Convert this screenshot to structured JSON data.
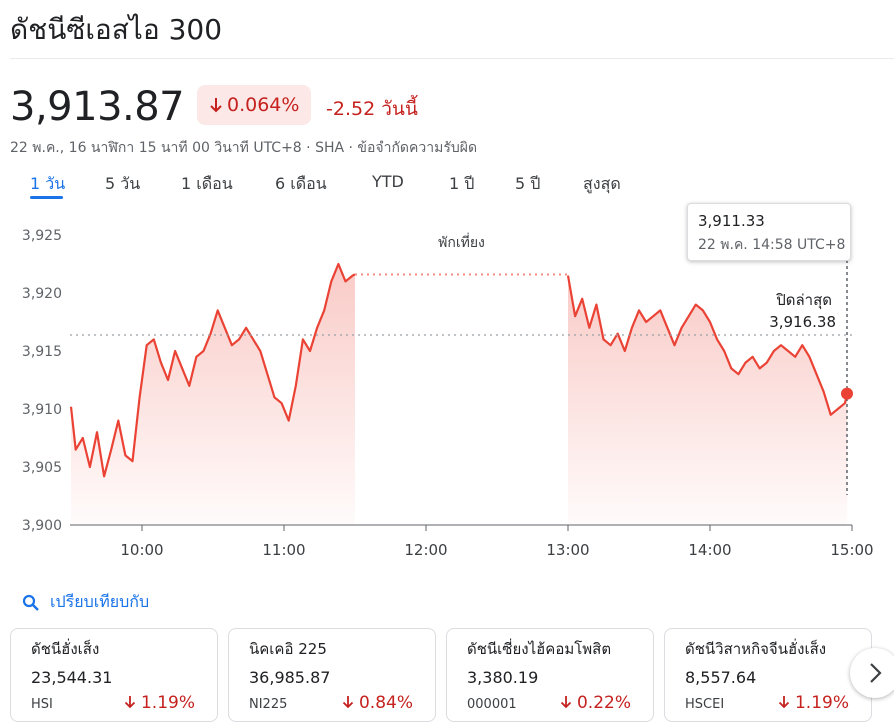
{
  "header": {
    "title": "ดัชนีซีเอสไอ 300",
    "price": "3,913.87",
    "pct_change": "0.064%",
    "abs_change": "-2.52 วันนี้",
    "meta": "22 พ.ค., 16 นาฬิกา 15 นาที 00 วินาที UTC+8 · SHA · ข้อจำกัดความรับผิด"
  },
  "tabs": [
    "1 วัน",
    "5 วัน",
    "1 เดือน",
    "6 เดือน",
    "YTD",
    "1 ปี",
    "5 ปี",
    "สูงสุด"
  ],
  "chart_data": {
    "type": "line",
    "y_ticks": [
      "3,925",
      "3,920",
      "3,915",
      "3,910",
      "3,905",
      "3,900"
    ],
    "x_ticks": [
      "10:00",
      "11:00",
      "12:00",
      "13:00",
      "14:00",
      "15:00"
    ],
    "ylim": [
      3900,
      3927
    ],
    "break_label": "พักเที่ยง",
    "prev_close_label": "ปิดล่าสุด",
    "prev_close_value": "3,916.38",
    "prev_close": 3916.38,
    "tooltip_value": "3,911.33",
    "tooltip_time": "22 พ.ค. 14:58 UTC+8",
    "line_color": "#ea4335",
    "morning": {
      "x": [
        "09:30",
        "09:32",
        "09:35",
        "09:38",
        "09:41",
        "09:44",
        "09:47",
        "09:50",
        "09:53",
        "09:56",
        "09:59",
        "10:02",
        "10:05",
        "10:08",
        "10:11",
        "10:14",
        "10:17",
        "10:20",
        "10:23",
        "10:26",
        "10:29",
        "10:32",
        "10:35",
        "10:38",
        "10:41",
        "10:44",
        "10:47",
        "10:50",
        "10:53",
        "10:56",
        "10:59",
        "11:02",
        "11:05",
        "11:08",
        "11:11",
        "11:14",
        "11:17",
        "11:20",
        "11:23",
        "11:26",
        "11:29",
        "11:30"
      ],
      "y": [
        3910.2,
        3906.5,
        3907.5,
        3905.0,
        3908.0,
        3904.2,
        3906.5,
        3909.0,
        3906.0,
        3905.5,
        3911.0,
        3915.5,
        3916.0,
        3914.0,
        3912.5,
        3915.0,
        3913.5,
        3912.0,
        3914.5,
        3915.0,
        3916.5,
        3918.5,
        3917.0,
        3915.5,
        3916.0,
        3917.0,
        3916.0,
        3915.0,
        3913.0,
        3911.0,
        3910.5,
        3909.0,
        3912.0,
        3916.0,
        3915.0,
        3917.0,
        3918.5,
        3921.0,
        3922.5,
        3921.0,
        3921.5,
        3921.6
      ]
    },
    "afternoon": {
      "x": [
        "13:00",
        "13:03",
        "13:06",
        "13:09",
        "13:12",
        "13:15",
        "13:18",
        "13:21",
        "13:24",
        "13:27",
        "13:30",
        "13:33",
        "13:36",
        "13:39",
        "13:42",
        "13:45",
        "13:48",
        "13:51",
        "13:54",
        "13:57",
        "14:00",
        "14:03",
        "14:06",
        "14:09",
        "14:12",
        "14:15",
        "14:18",
        "14:21",
        "14:24",
        "14:27",
        "14:30",
        "14:33",
        "14:36",
        "14:39",
        "14:42",
        "14:45",
        "14:48",
        "14:51",
        "14:54",
        "14:57",
        "14:58"
      ],
      "y": [
        3921.5,
        3918.0,
        3919.5,
        3917.0,
        3919.0,
        3916.0,
        3915.5,
        3916.5,
        3915.0,
        3917.0,
        3918.5,
        3917.5,
        3918.0,
        3918.5,
        3917.0,
        3915.5,
        3917.0,
        3918.0,
        3919.0,
        3918.5,
        3917.5,
        3916.0,
        3915.0,
        3913.5,
        3913.0,
        3914.0,
        3914.5,
        3913.5,
        3914.0,
        3915.0,
        3915.5,
        3915.0,
        3914.5,
        3915.5,
        3914.5,
        3913.0,
        3911.5,
        3909.5,
        3910.0,
        3910.5,
        3911.33
      ]
    }
  },
  "compare": {
    "label": "เปรียบเทียบกับ"
  },
  "cards": [
    {
      "name": "ดัชนีฮั่งเส็ง",
      "value": "23,544.31",
      "symbol": "HSI",
      "change": "1.19%"
    },
    {
      "name": "นิคเคอิ 225",
      "value": "36,985.87",
      "symbol": "NI225",
      "change": "0.84%"
    },
    {
      "name": "ดัชนีเซี่ยงไฮ้คอมโพสิต",
      "value": "3,380.19",
      "symbol": "000001",
      "change": "0.22%"
    },
    {
      "name": "ดัชนีวิสาหกิจจีนฮั่งเส็ง",
      "value": "8,557.64",
      "symbol": "HSCEI",
      "change": "1.19%"
    }
  ]
}
